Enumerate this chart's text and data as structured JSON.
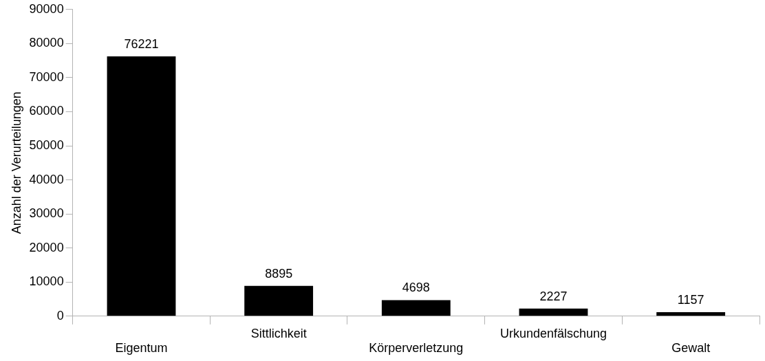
{
  "chart_data": {
    "type": "bar",
    "ylabel": "Anzahl der Verurteilungen",
    "categories": [
      "Eigentum",
      "Sittlichkeit",
      "Körperverletzung",
      "Urkundenfälschung",
      "Gewalt"
    ],
    "values": [
      76221,
      8895,
      4698,
      2227,
      1157
    ],
    "color": "#000000",
    "ylim": [
      0,
      90000
    ],
    "yticks": [
      0,
      10000,
      20000,
      30000,
      40000,
      50000,
      60000,
      70000,
      80000,
      90000
    ],
    "grid": false,
    "legend": false,
    "data_labels": true
  }
}
